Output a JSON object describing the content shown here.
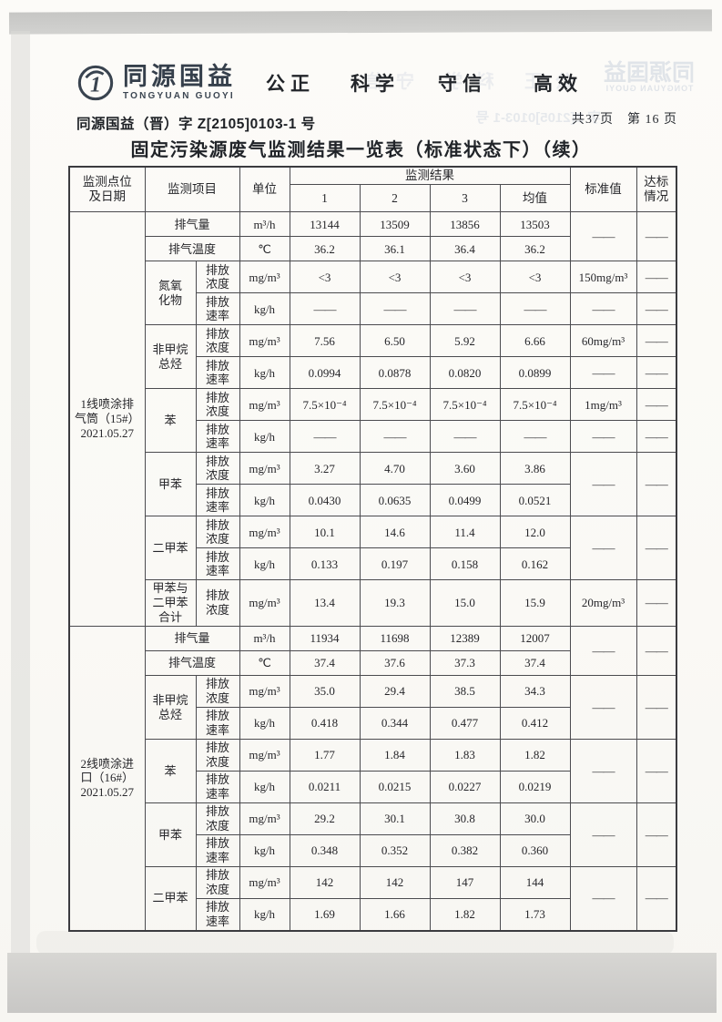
{
  "colors": {
    "paper": "#faf9f5",
    "scan_gray": "#cbcac8",
    "logo": "#39434f",
    "ink": "#26262a"
  },
  "brand": {
    "logo_text": "同源国益",
    "logo_subtext": "TONGYUAN GUOYI",
    "logo_mark": "1",
    "slogans": [
      "公正",
      "科学",
      "守信",
      "高效"
    ]
  },
  "page": {
    "doc_number": "同源国益（晋）字 Z[2105]0103-1 号",
    "page_count": "共37页　第 16 页",
    "title": "固定污染源废气监测结果一览表（标准状态下）（续）"
  },
  "artifacts": {
    "ghost_logo_text": "同源国益",
    "ghost_logo_subtext": "TONGYUAN GUOYI",
    "ghost_doc_number": "字 Z[2105]0103-1 号",
    "ghost_slogan": "公正 科学 守信"
  },
  "table": {
    "header": {
      "point": "监测点位\n及日期",
      "item": "监测项目",
      "unit": "单位",
      "results": "监测结果",
      "result_cols": [
        "1",
        "2",
        "3",
        "均值"
      ],
      "standard": "标准值",
      "status": "达标\n情况"
    },
    "sections": [
      {
        "rows": [
          {
            "point": "1线喷涂排\n气筒（15#）\n2021.05.27",
            "point_rs": 13,
            "item": "排气量",
            "unit": "m³/h",
            "values": [
              "13144",
              "13509",
              "13856",
              "13503"
            ],
            "std": "——",
            "std_rs": 2,
            "status": "——",
            "status_rs": 2
          },
          {
            "item": "排气温度",
            "unit": "℃",
            "values": [
              "36.2",
              "36.1",
              "36.4",
              "36.2"
            ]
          },
          {
            "item": "氮氧\n化物",
            "item_rs": 2,
            "sub": "排放\n浓度",
            "unit": "mg/m³",
            "values": [
              "<3",
              "<3",
              "<3",
              "<3"
            ],
            "std": "150mg/m³",
            "status": "——"
          },
          {
            "sub": "排放\n速率",
            "unit": "kg/h",
            "values": [
              "——",
              "——",
              "——",
              "——"
            ],
            "std": "——",
            "status": "——"
          },
          {
            "item": "非甲烷\n总烃",
            "item_rs": 2,
            "sub": "排放\n浓度",
            "unit": "mg/m³",
            "values": [
              "7.56",
              "6.50",
              "5.92",
              "6.66"
            ],
            "std": "60mg/m³",
            "status": "——"
          },
          {
            "sub": "排放\n速率",
            "unit": "kg/h",
            "values": [
              "0.0994",
              "0.0878",
              "0.0820",
              "0.0899"
            ],
            "std": "——",
            "status": "——"
          },
          {
            "item": "苯",
            "item_rs": 2,
            "sub": "排放\n浓度",
            "unit": "mg/m³",
            "values": [
              "7.5×10⁻⁴",
              "7.5×10⁻⁴",
              "7.5×10⁻⁴",
              "7.5×10⁻⁴"
            ],
            "std": "1mg/m³",
            "status": "——"
          },
          {
            "sub": "排放\n速率",
            "unit": "kg/h",
            "values": [
              "——",
              "——",
              "——",
              "——"
            ],
            "std": "——",
            "status": "——"
          },
          {
            "item": "甲苯",
            "item_rs": 2,
            "sub": "排放\n浓度",
            "unit": "mg/m³",
            "values": [
              "3.27",
              "4.70",
              "3.60",
              "3.86"
            ],
            "std": "——",
            "std_rs": 2,
            "status": "——",
            "status_rs": 2
          },
          {
            "sub": "排放\n速率",
            "unit": "kg/h",
            "values": [
              "0.0430",
              "0.0635",
              "0.0499",
              "0.0521"
            ]
          },
          {
            "item": "二甲苯",
            "item_rs": 2,
            "sub": "排放\n浓度",
            "unit": "mg/m³",
            "values": [
              "10.1",
              "14.6",
              "11.4",
              "12.0"
            ],
            "std": "——",
            "std_rs": 2,
            "status": "——",
            "status_rs": 2
          },
          {
            "sub": "排放\n速率",
            "unit": "kg/h",
            "values": [
              "0.133",
              "0.197",
              "0.158",
              "0.162"
            ]
          },
          {
            "item": "甲苯与\n二甲苯\n合计",
            "sub": "排放\n浓度",
            "unit": "mg/m³",
            "values": [
              "13.4",
              "19.3",
              "15.0",
              "15.9"
            ],
            "std": "20mg/m³",
            "status": "——"
          }
        ]
      },
      {
        "rows": [
          {
            "point": "2线喷涂进\n口（16#）\n2021.05.27",
            "point_rs": 10,
            "item": "排气量",
            "unit": "m³/h",
            "values": [
              "11934",
              "11698",
              "12389",
              "12007"
            ],
            "std": "——",
            "std_rs": 2,
            "status": "——",
            "status_rs": 2
          },
          {
            "item": "排气温度",
            "unit": "℃",
            "values": [
              "37.4",
              "37.6",
              "37.3",
              "37.4"
            ]
          },
          {
            "item": "非甲烷\n总烃",
            "item_rs": 2,
            "sub": "排放\n浓度",
            "unit": "mg/m³",
            "values": [
              "35.0",
              "29.4",
              "38.5",
              "34.3"
            ],
            "std": "——",
            "std_rs": 2,
            "status": "——",
            "status_rs": 2
          },
          {
            "sub": "排放\n速率",
            "unit": "kg/h",
            "values": [
              "0.418",
              "0.344",
              "0.477",
              "0.412"
            ]
          },
          {
            "item": "苯",
            "item_rs": 2,
            "sub": "排放\n浓度",
            "unit": "mg/m³",
            "values": [
              "1.77",
              "1.84",
              "1.83",
              "1.82"
            ],
            "std": "——",
            "std_rs": 2,
            "status": "——",
            "status_rs": 2
          },
          {
            "sub": "排放\n速率",
            "unit": "kg/h",
            "values": [
              "0.0211",
              "0.0215",
              "0.0227",
              "0.0219"
            ]
          },
          {
            "item": "甲苯",
            "item_rs": 2,
            "sub": "排放\n浓度",
            "unit": "mg/m³",
            "values": [
              "29.2",
              "30.1",
              "30.8",
              "30.0"
            ],
            "std": "——",
            "std_rs": 2,
            "status": "——",
            "status_rs": 2
          },
          {
            "sub": "排放\n速率",
            "unit": "kg/h",
            "values": [
              "0.348",
              "0.352",
              "0.382",
              "0.360"
            ]
          },
          {
            "item": "二甲苯",
            "item_rs": 2,
            "sub": "排放\n浓度",
            "unit": "mg/m³",
            "values": [
              "142",
              "142",
              "147",
              "144"
            ],
            "std": "——",
            "std_rs": 2,
            "status": "——",
            "status_rs": 2
          },
          {
            "sub": "排放\n速率",
            "unit": "kg/h",
            "values": [
              "1.69",
              "1.66",
              "1.82",
              "1.73"
            ]
          }
        ]
      }
    ]
  }
}
